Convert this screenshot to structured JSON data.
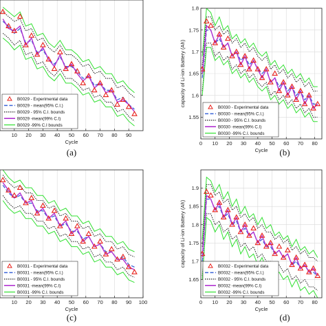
{
  "palette": {
    "experimental": "#e8201a",
    "mean95": "#3a63d8",
    "bounds95": "#111111",
    "mean99": "#b030d0",
    "bounds99": "#30e030"
  },
  "chart_data": [
    {
      "type": "line",
      "caption": "(a)",
      "xlabel": "Cycle",
      "ylabel": "",
      "xlim": [
        0,
        100
      ],
      "ylim": [
        1.3,
        1.85
      ],
      "xticks": [
        10,
        20,
        30,
        40,
        50,
        60,
        70,
        80,
        90
      ],
      "yticks": [],
      "legend": {
        "placement": "bottom-left",
        "entries": [
          "B0029 - Experimental data",
          "B0029 - mean(95% C.I.)",
          "B0029 - 95% C.I. bounds",
          "B0029 -mean(99% C.I)",
          "B0029 -99% C.I bounds"
        ]
      },
      "x": [
        2,
        6,
        10,
        14,
        18,
        22,
        26,
        30,
        34,
        38,
        42,
        46,
        50,
        54,
        58,
        62,
        66,
        70,
        74,
        78,
        82,
        86,
        90,
        94
      ],
      "experimental": [
        1.8,
        1.74,
        1.72,
        1.78,
        1.66,
        1.7,
        1.62,
        1.66,
        1.6,
        1.56,
        1.63,
        1.56,
        1.58,
        1.55,
        1.5,
        1.53,
        1.47,
        1.5,
        1.45,
        1.47,
        1.41,
        1.43,
        1.4,
        1.37
      ],
      "series": [
        {
          "key": "mean95",
          "values": [
            1.76,
            1.74,
            1.71,
            1.73,
            1.67,
            1.68,
            1.63,
            1.64,
            1.6,
            1.58,
            1.61,
            1.57,
            1.57,
            1.55,
            1.52,
            1.53,
            1.49,
            1.5,
            1.47,
            1.47,
            1.43,
            1.44,
            1.41,
            1.39
          ]
        },
        {
          "key": "bounds95",
          "values": [
            1.8,
            1.78,
            1.76,
            1.77,
            1.72,
            1.73,
            1.68,
            1.69,
            1.65,
            1.63,
            1.66,
            1.62,
            1.62,
            1.6,
            1.57,
            1.58,
            1.54,
            1.55,
            1.52,
            1.52,
            1.48,
            1.49,
            1.46,
            1.44
          ]
        },
        {
          "key": "bounds95",
          "values": [
            1.71,
            1.69,
            1.66,
            1.68,
            1.62,
            1.63,
            1.58,
            1.59,
            1.55,
            1.53,
            1.56,
            1.52,
            1.52,
            1.5,
            1.47,
            1.48,
            1.44,
            1.45,
            1.42,
            1.42,
            1.38,
            1.39,
            1.36,
            1.34
          ]
        },
        {
          "key": "mean99",
          "values": [
            1.77,
            1.73,
            1.72,
            1.74,
            1.66,
            1.69,
            1.62,
            1.65,
            1.6,
            1.57,
            1.62,
            1.56,
            1.58,
            1.54,
            1.51,
            1.53,
            1.48,
            1.5,
            1.46,
            1.47,
            1.42,
            1.43,
            1.41,
            1.38
          ]
        },
        {
          "key": "bounds99",
          "values": [
            1.82,
            1.8,
            1.78,
            1.8,
            1.74,
            1.75,
            1.7,
            1.71,
            1.67,
            1.65,
            1.68,
            1.64,
            1.64,
            1.62,
            1.59,
            1.6,
            1.56,
            1.57,
            1.54,
            1.54,
            1.5,
            1.51,
            1.48,
            1.46
          ]
        },
        {
          "key": "bounds99",
          "values": [
            1.69,
            1.67,
            1.64,
            1.66,
            1.6,
            1.61,
            1.56,
            1.57,
            1.53,
            1.51,
            1.54,
            1.5,
            1.5,
            1.48,
            1.45,
            1.46,
            1.42,
            1.43,
            1.4,
            1.4,
            1.36,
            1.37,
            1.34,
            1.32
          ]
        }
      ]
    },
    {
      "type": "line",
      "caption": "(b)",
      "xlabel": "Cycle",
      "ylabel": "capacity of Li-ion Battery (Ah)",
      "xlim": [
        0,
        85
      ],
      "ylim": [
        1.5,
        1.8
      ],
      "xticks": [
        0,
        10,
        20,
        30,
        40,
        50,
        60,
        70,
        80
      ],
      "yticks": [
        1.55,
        1.6,
        1.65,
        1.7,
        1.75,
        1.8
      ],
      "legend": {
        "placement": "bottom-left",
        "entries": [
          "B0030 - Experimental data",
          "B0030 - mean(95% C.I.)",
          "B0030 - 95% C.I. bounds",
          "B0030 -mean(99% C.I)",
          "B0030 -99% C.I. bounds"
        ]
      },
      "x": [
        1,
        4,
        7,
        10,
        13,
        16,
        19,
        22,
        25,
        28,
        31,
        34,
        37,
        40,
        43,
        46,
        49,
        52,
        55,
        58,
        61,
        64,
        67,
        70,
        73,
        76,
        79,
        82
      ],
      "experimental": [
        1.66,
        1.77,
        1.76,
        1.72,
        1.74,
        1.71,
        1.73,
        1.69,
        1.7,
        1.67,
        1.69,
        1.66,
        1.68,
        1.66,
        1.64,
        1.66,
        1.63,
        1.65,
        1.61,
        1.63,
        1.6,
        1.62,
        1.59,
        1.61,
        1.58,
        1.6,
        1.57,
        1.58
      ],
      "series": [
        {
          "key": "mean95",
          "values": [
            1.64,
            1.75,
            1.75,
            1.72,
            1.73,
            1.71,
            1.72,
            1.69,
            1.7,
            1.68,
            1.69,
            1.67,
            1.68,
            1.66,
            1.65,
            1.66,
            1.63,
            1.64,
            1.62,
            1.63,
            1.61,
            1.62,
            1.6,
            1.61,
            1.59,
            1.6,
            1.58,
            1.58
          ]
        },
        {
          "key": "bounds95",
          "values": [
            1.67,
            1.78,
            1.78,
            1.75,
            1.76,
            1.74,
            1.75,
            1.72,
            1.73,
            1.71,
            1.72,
            1.7,
            1.71,
            1.69,
            1.68,
            1.69,
            1.66,
            1.67,
            1.65,
            1.66,
            1.64,
            1.65,
            1.63,
            1.64,
            1.62,
            1.63,
            1.61,
            1.61
          ]
        },
        {
          "key": "bounds95",
          "values": [
            1.61,
            1.72,
            1.72,
            1.69,
            1.7,
            1.68,
            1.69,
            1.66,
            1.67,
            1.65,
            1.66,
            1.64,
            1.65,
            1.63,
            1.62,
            1.63,
            1.6,
            1.61,
            1.59,
            1.6,
            1.58,
            1.59,
            1.57,
            1.58,
            1.56,
            1.57,
            1.55,
            1.55
          ]
        },
        {
          "key": "mean99",
          "values": [
            1.65,
            1.76,
            1.75,
            1.72,
            1.74,
            1.71,
            1.72,
            1.69,
            1.7,
            1.67,
            1.69,
            1.66,
            1.68,
            1.66,
            1.64,
            1.66,
            1.63,
            1.64,
            1.61,
            1.63,
            1.6,
            1.62,
            1.59,
            1.61,
            1.58,
            1.6,
            1.57,
            1.58
          ]
        },
        {
          "key": "bounds99",
          "values": [
            1.69,
            1.8,
            1.79,
            1.76,
            1.78,
            1.75,
            1.76,
            1.73,
            1.74,
            1.72,
            1.73,
            1.71,
            1.72,
            1.7,
            1.69,
            1.7,
            1.67,
            1.68,
            1.66,
            1.67,
            1.65,
            1.66,
            1.64,
            1.65,
            1.63,
            1.64,
            1.62,
            1.62
          ]
        },
        {
          "key": "bounds99",
          "values": [
            1.6,
            1.71,
            1.71,
            1.68,
            1.69,
            1.67,
            1.68,
            1.65,
            1.66,
            1.64,
            1.65,
            1.63,
            1.64,
            1.62,
            1.61,
            1.62,
            1.59,
            1.6,
            1.58,
            1.59,
            1.57,
            1.58,
            1.56,
            1.57,
            1.55,
            1.56,
            1.54,
            1.54
          ]
        }
      ]
    },
    {
      "type": "line",
      "caption": "(c)",
      "xlabel": "Cycle",
      "ylabel": "",
      "xlim": [
        0,
        100
      ],
      "ylim": [
        1.4,
        1.9
      ],
      "xticks": [
        10,
        20,
        30,
        40,
        50,
        60,
        70,
        80,
        90,
        100
      ],
      "xticklabels": [
        "10",
        "20",
        "30",
        "40",
        "50",
        "60",
        "70",
        "80",
        "90",
        "100"
      ],
      "yticks": [],
      "legend": {
        "placement": "bottom-left",
        "entries": [
          "B0031 - Experimental data",
          "B0031 - mean(95% C.I.)",
          "B0031 - 95% C.I. bounds",
          "B0031 -mean(99% C.I)",
          "B0031 -99% C.I. bounds"
        ]
      },
      "x": [
        2,
        6,
        10,
        14,
        18,
        22,
        26,
        30,
        34,
        38,
        42,
        46,
        50,
        54,
        58,
        62,
        66,
        70,
        74,
        78,
        82,
        86,
        90,
        94
      ],
      "experimental": [
        1.86,
        1.82,
        1.8,
        1.83,
        1.77,
        1.79,
        1.73,
        1.76,
        1.71,
        1.74,
        1.68,
        1.71,
        1.65,
        1.68,
        1.62,
        1.65,
        1.6,
        1.62,
        1.57,
        1.59,
        1.55,
        1.56,
        1.52,
        1.5
      ],
      "series": [
        {
          "key": "mean95",
          "values": [
            1.84,
            1.81,
            1.79,
            1.8,
            1.77,
            1.77,
            1.74,
            1.74,
            1.71,
            1.72,
            1.68,
            1.69,
            1.66,
            1.66,
            1.63,
            1.64,
            1.6,
            1.61,
            1.58,
            1.58,
            1.55,
            1.56,
            1.53,
            1.52
          ]
        },
        {
          "key": "bounds95",
          "values": [
            1.88,
            1.85,
            1.83,
            1.84,
            1.81,
            1.81,
            1.78,
            1.78,
            1.75,
            1.76,
            1.72,
            1.73,
            1.7,
            1.7,
            1.67,
            1.68,
            1.64,
            1.65,
            1.62,
            1.62,
            1.59,
            1.6,
            1.57,
            1.56
          ]
        },
        {
          "key": "bounds95",
          "values": [
            1.8,
            1.77,
            1.75,
            1.76,
            1.73,
            1.73,
            1.7,
            1.7,
            1.67,
            1.68,
            1.64,
            1.65,
            1.62,
            1.62,
            1.59,
            1.6,
            1.56,
            1.57,
            1.54,
            1.54,
            1.51,
            1.52,
            1.49,
            1.48
          ]
        },
        {
          "key": "mean99",
          "values": [
            1.85,
            1.82,
            1.79,
            1.81,
            1.77,
            1.78,
            1.73,
            1.75,
            1.71,
            1.73,
            1.68,
            1.7,
            1.65,
            1.67,
            1.62,
            1.64,
            1.6,
            1.61,
            1.57,
            1.58,
            1.55,
            1.55,
            1.52,
            1.51
          ]
        },
        {
          "key": "bounds99",
          "values": [
            1.9,
            1.87,
            1.85,
            1.86,
            1.83,
            1.83,
            1.8,
            1.8,
            1.77,
            1.78,
            1.74,
            1.75,
            1.72,
            1.72,
            1.69,
            1.7,
            1.66,
            1.67,
            1.64,
            1.64,
            1.61,
            1.62,
            1.59,
            1.58
          ]
        },
        {
          "key": "bounds99",
          "values": [
            1.78,
            1.75,
            1.73,
            1.74,
            1.71,
            1.71,
            1.68,
            1.68,
            1.65,
            1.66,
            1.62,
            1.63,
            1.6,
            1.6,
            1.57,
            1.58,
            1.54,
            1.55,
            1.52,
            1.52,
            1.49,
            1.5,
            1.47,
            1.46
          ]
        }
      ]
    },
    {
      "type": "line",
      "caption": "(d)",
      "xlabel": "Cycle",
      "ylabel": "capacity of Li-ion Battery (Ah)",
      "xlim": [
        0,
        85
      ],
      "ylim": [
        1.6,
        1.95
      ],
      "xticks": [
        0,
        10,
        20,
        30,
        40,
        50,
        60,
        70,
        80
      ],
      "yticks": [
        1.65,
        1.7,
        1.75,
        1.8,
        1.85,
        1.9
      ],
      "yticklabels": [
        "1.65",
        "1.7",
        "1.75",
        "1.8",
        "1.85",
        "1.9"
      ],
      "legend": {
        "placement": "bottom-left",
        "entries": [
          "B0032 - Experimental data",
          "B0032 - mean(95% C.I.)",
          "B0032 - 95% C.I. bounds",
          "B0032 -mean(99% C.I)",
          "B0032 -99% C.I. bounds"
        ]
      },
      "x": [
        1,
        4,
        7,
        10,
        13,
        16,
        19,
        22,
        25,
        28,
        31,
        34,
        37,
        40,
        43,
        46,
        49,
        52,
        55,
        58,
        61,
        64,
        67,
        70,
        73,
        76,
        79,
        82
      ],
      "experimental": [
        1.72,
        1.89,
        1.88,
        1.84,
        1.86,
        1.82,
        1.84,
        1.8,
        1.82,
        1.78,
        1.8,
        1.77,
        1.79,
        1.75,
        1.77,
        1.74,
        1.75,
        1.72,
        1.74,
        1.71,
        1.73,
        1.69,
        1.71,
        1.68,
        1.69,
        1.67,
        1.68,
        1.66
      ],
      "series": [
        {
          "key": "mean95",
          "values": [
            1.7,
            1.87,
            1.87,
            1.84,
            1.85,
            1.82,
            1.83,
            1.8,
            1.81,
            1.78,
            1.79,
            1.77,
            1.78,
            1.75,
            1.76,
            1.74,
            1.74,
            1.72,
            1.73,
            1.71,
            1.72,
            1.69,
            1.7,
            1.68,
            1.69,
            1.67,
            1.67,
            1.66
          ]
        },
        {
          "key": "bounds95",
          "values": [
            1.74,
            1.91,
            1.91,
            1.88,
            1.89,
            1.86,
            1.87,
            1.84,
            1.85,
            1.82,
            1.83,
            1.81,
            1.82,
            1.79,
            1.8,
            1.78,
            1.78,
            1.76,
            1.77,
            1.75,
            1.76,
            1.73,
            1.74,
            1.72,
            1.73,
            1.71,
            1.71,
            1.7
          ]
        },
        {
          "key": "bounds95",
          "values": [
            1.66,
            1.83,
            1.83,
            1.8,
            1.81,
            1.78,
            1.79,
            1.76,
            1.77,
            1.74,
            1.75,
            1.73,
            1.74,
            1.71,
            1.72,
            1.7,
            1.7,
            1.68,
            1.69,
            1.67,
            1.68,
            1.65,
            1.66,
            1.64,
            1.65,
            1.63,
            1.63,
            1.62
          ]
        },
        {
          "key": "mean99",
          "values": [
            1.71,
            1.88,
            1.87,
            1.84,
            1.86,
            1.82,
            1.84,
            1.8,
            1.82,
            1.78,
            1.8,
            1.77,
            1.78,
            1.75,
            1.77,
            1.74,
            1.75,
            1.72,
            1.73,
            1.71,
            1.72,
            1.69,
            1.71,
            1.68,
            1.69,
            1.67,
            1.68,
            1.66
          ]
        },
        {
          "key": "bounds99",
          "values": [
            1.76,
            1.93,
            1.92,
            1.89,
            1.91,
            1.87,
            1.89,
            1.85,
            1.87,
            1.83,
            1.85,
            1.82,
            1.83,
            1.8,
            1.82,
            1.79,
            1.8,
            1.77,
            1.78,
            1.76,
            1.77,
            1.74,
            1.76,
            1.73,
            1.74,
            1.72,
            1.73,
            1.71
          ]
        },
        {
          "key": "bounds99",
          "values": [
            1.65,
            1.82,
            1.81,
            1.78,
            1.8,
            1.76,
            1.78,
            1.74,
            1.76,
            1.72,
            1.74,
            1.71,
            1.72,
            1.69,
            1.71,
            1.68,
            1.69,
            1.66,
            1.67,
            1.65,
            1.66,
            1.63,
            1.65,
            1.62,
            1.63,
            1.61,
            1.62,
            1.6
          ]
        }
      ]
    }
  ]
}
